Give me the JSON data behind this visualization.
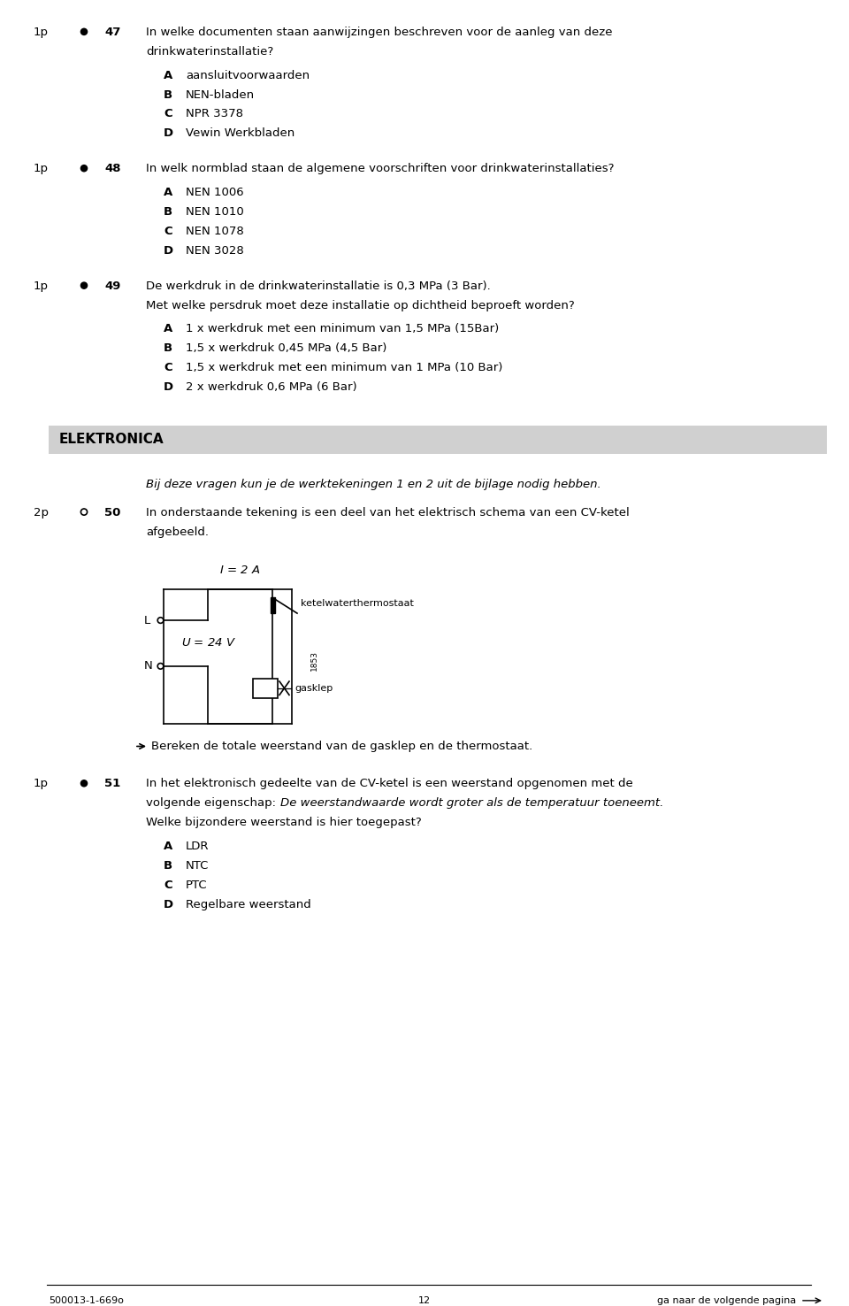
{
  "bg_color": "#ffffff",
  "page_width": 9.6,
  "page_height": 14.76,
  "footer_text_left": "500013-1-669o",
  "footer_text_center": "12",
  "footer_text_right": "ga naar de volgende pagina",
  "questions": [
    {
      "points": "1p",
      "marker": "bullet",
      "number": "47",
      "text_lines": [
        "In welke documenten staan aanwijzingen beschreven voor de aanleg van deze",
        "drinkwaterinstallatie?"
      ],
      "options": [
        {
          "letter": "A",
          "text": "aansluitvoorwaarden"
        },
        {
          "letter": "B",
          "text": "NEN-bladen"
        },
        {
          "letter": "C",
          "text": "NPR 3378"
        },
        {
          "letter": "D",
          "text": "Vewin Werkbladen"
        }
      ]
    },
    {
      "points": "1p",
      "marker": "bullet",
      "number": "48",
      "text_lines": [
        "In welk normblad staan de algemene voorschriften voor drinkwaterinstallaties?"
      ],
      "options": [
        {
          "letter": "A",
          "text": "NEN 1006"
        },
        {
          "letter": "B",
          "text": "NEN 1010"
        },
        {
          "letter": "C",
          "text": "NEN 1078"
        },
        {
          "letter": "D",
          "text": "NEN 3028"
        }
      ]
    },
    {
      "points": "1p",
      "marker": "bullet",
      "number": "49",
      "text_lines": [
        "De werkdruk in de drinkwaterinstallatie is 0,3 MPa (3 Bar).",
        "Met welke persdruk moet deze installatie op dichtheid beproeft worden?"
      ],
      "options": [
        {
          "letter": "A",
          "text": "1 x werkdruk met een minimum van 1,5 MPa (15Bar)"
        },
        {
          "letter": "B",
          "text": "1,5 x werkdruk 0,45 MPa (4,5 Bar)"
        },
        {
          "letter": "C",
          "text": "1,5 x werkdruk met een minimum van 1 MPa (10 Bar)"
        },
        {
          "letter": "D",
          "text": "2 x werkdruk 0,6 MPa (6 Bar)"
        }
      ]
    }
  ],
  "section_header": "ELEKTRONICA",
  "section_header_bg": "#d0d0d0",
  "italic_note": "Bij deze vragen kun je de werktekeningen 1 en 2 uit de bijlage nodig hebben.",
  "q50": {
    "points": "2p",
    "marker": "circle",
    "number": "50",
    "text_lines": [
      "In onderstaande tekening is een deel van het elektrisch schema van een CV-ketel",
      "afgebeeld."
    ]
  },
  "arrow_text": "Bereken de totale weerstand van de gasklep en de thermostaat.",
  "q51": {
    "points": "1p",
    "marker": "bullet",
    "number": "51",
    "text_line1": "In het elektronisch gedeelte van de CV-ketel is een weerstand opgenomen met de",
    "text_line2_normal": "volgende eigenschap: ",
    "text_line2_italic": "De weerstandwaarde wordt groter als de temperatuur toeneemt.",
    "text_line3": "Welke bijzondere weerstand is hier toegepast?",
    "options": [
      {
        "letter": "A",
        "text": "LDR"
      },
      {
        "letter": "B",
        "text": "NTC"
      },
      {
        "letter": "C",
        "text": "PTC"
      },
      {
        "letter": "D",
        "text": "Regelbare weerstand"
      }
    ]
  }
}
